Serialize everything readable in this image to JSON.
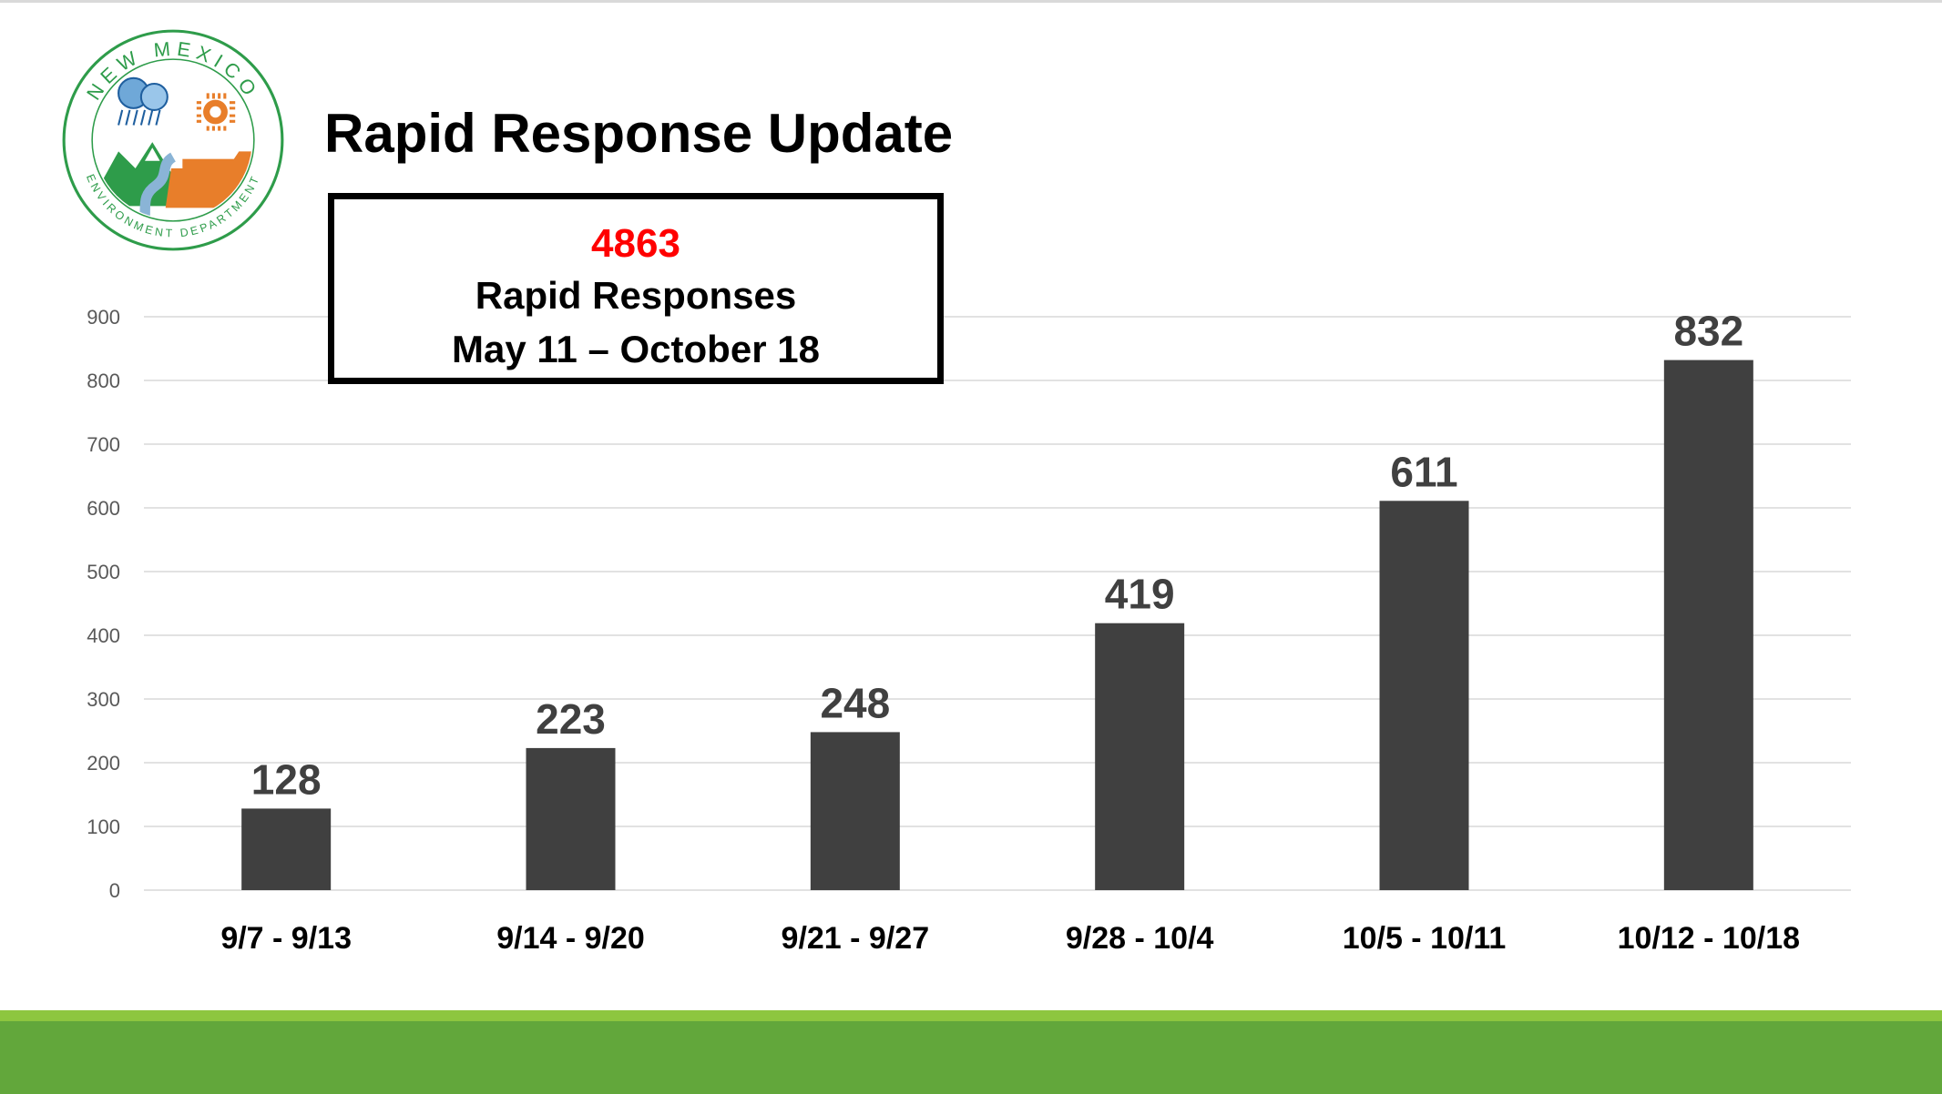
{
  "slide": {
    "title": "Rapid Response Update",
    "logo": {
      "icon": "new-mexico-environment-department-seal",
      "top_text": "NEW MEXICO",
      "bottom_text": "ENVIRONMENT DEPARTMENT"
    },
    "callout": {
      "total": "4863",
      "label": "Rapid Responses",
      "range": "May 11 – October 18"
    }
  },
  "colors": {
    "bar": "#404040",
    "total_highlight": "#ff0000",
    "footer": "#62a73b",
    "footer_stripe": "#8dc63f",
    "gridline": "#d9d9d9",
    "logo_ring": "#2e9c4a"
  },
  "chart_data": {
    "type": "bar",
    "categories": [
      "9/7 - 9/13",
      "9/14 - 9/20",
      "9/21 - 9/27",
      "9/28 - 10/4",
      "10/5 - 10/11",
      "10/12 - 10/18"
    ],
    "values": [
      128,
      223,
      248,
      419,
      611,
      832
    ],
    "title": "",
    "xlabel": "",
    "ylabel": "",
    "ylim": [
      0,
      900
    ],
    "yticks": [
      0,
      100,
      200,
      300,
      400,
      500,
      600,
      700,
      800,
      900
    ],
    "grid": true,
    "legend": "none",
    "data_labels": true
  }
}
